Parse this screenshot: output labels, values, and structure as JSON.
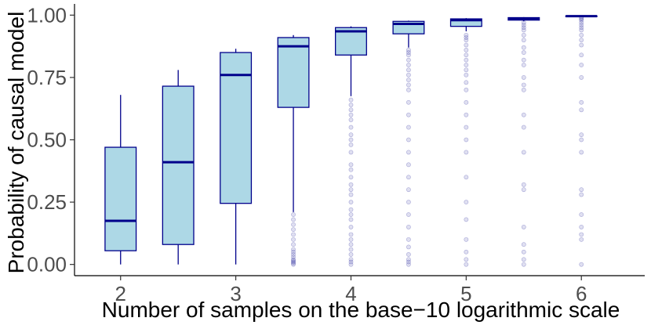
{
  "chart_data": {
    "type": "boxplot",
    "title": "",
    "xlabel": "Number of samples on the base−10 logarithmic scale",
    "ylabel": "Probability of causal model",
    "xlim": [
      1.6,
      6.55
    ],
    "ylim": [
      -0.045,
      1.045
    ],
    "x_ticks": [
      2,
      3,
      4,
      5,
      6
    ],
    "x_tick_labels": [
      "2",
      "3",
      "4",
      "5",
      "6"
    ],
    "y_ticks": [
      0.0,
      0.25,
      0.5,
      0.75,
      1.0
    ],
    "y_tick_labels": [
      "0.00",
      "0.25",
      "0.50",
      "0.75",
      "1.00"
    ],
    "box_width": 0.27,
    "colors": {
      "box_fill": "#add8e6",
      "box_stroke": "#00008b",
      "median": "#00008b",
      "outlier": "#00008b"
    },
    "boxes": [
      {
        "x": 2.0,
        "lower_whisker": 0.0,
        "q1": 0.055,
        "median": 0.175,
        "q3": 0.47,
        "upper_whisker": 0.68,
        "outliers": []
      },
      {
        "x": 2.5,
        "lower_whisker": 0.0,
        "q1": 0.08,
        "median": 0.41,
        "q3": 0.715,
        "upper_whisker": 0.78,
        "outliers": []
      },
      {
        "x": 3.0,
        "lower_whisker": 0.0,
        "q1": 0.245,
        "median": 0.76,
        "q3": 0.85,
        "upper_whisker": 0.865,
        "outliers": []
      },
      {
        "x": 3.5,
        "lower_whisker": 0.21,
        "q1": 0.63,
        "median": 0.875,
        "q3": 0.91,
        "upper_whisker": 0.92,
        "outliers": [
          0.0,
          0.005,
          0.01,
          0.015,
          0.02,
          0.03,
          0.04,
          0.05,
          0.06,
          0.08,
          0.1,
          0.12,
          0.14,
          0.16,
          0.18,
          0.2
        ]
      },
      {
        "x": 4.0,
        "lower_whisker": 0.675,
        "q1": 0.84,
        "median": 0.935,
        "q3": 0.95,
        "upper_whisker": 0.955,
        "outliers": [
          0.0,
          0.01,
          0.02,
          0.04,
          0.06,
          0.08,
          0.1,
          0.12,
          0.15,
          0.18,
          0.2,
          0.22,
          0.25,
          0.28,
          0.3,
          0.32,
          0.35,
          0.38,
          0.4,
          0.45,
          0.48,
          0.5,
          0.52,
          0.55,
          0.58,
          0.6,
          0.62,
          0.64,
          0.66
        ]
      },
      {
        "x": 4.5,
        "lower_whisker": 0.87,
        "q1": 0.925,
        "median": 0.965,
        "q3": 0.975,
        "upper_whisker": 0.978,
        "outliers": [
          0.0,
          0.01,
          0.02,
          0.04,
          0.07,
          0.1,
          0.15,
          0.2,
          0.25,
          0.3,
          0.35,
          0.4,
          0.45,
          0.5,
          0.55,
          0.6,
          0.65,
          0.7,
          0.72,
          0.74,
          0.76,
          0.78,
          0.8,
          0.82,
          0.84,
          0.85,
          0.86
        ]
      },
      {
        "x": 5.0,
        "lower_whisker": 0.935,
        "q1": 0.955,
        "median": 0.98,
        "q3": 0.985,
        "upper_whisker": 0.988,
        "outliers": [
          0.0,
          0.02,
          0.05,
          0.1,
          0.18,
          0.25,
          0.35,
          0.45,
          0.5,
          0.55,
          0.6,
          0.65,
          0.7,
          0.73,
          0.76,
          0.78,
          0.8,
          0.82,
          0.84,
          0.86,
          0.88,
          0.9,
          0.91,
          0.92
        ]
      },
      {
        "x": 5.5,
        "lower_whisker": 0.975,
        "q1": 0.98,
        "median": 0.987,
        "q3": 0.99,
        "upper_whisker": 0.992,
        "outliers": [
          0.0,
          0.02,
          0.05,
          0.08,
          0.15,
          0.3,
          0.32,
          0.45,
          0.55,
          0.6,
          0.7,
          0.72,
          0.75,
          0.8,
          0.82,
          0.85,
          0.87,
          0.9,
          0.92,
          0.94,
          0.95,
          0.96,
          0.97
        ]
      },
      {
        "x": 6.0,
        "lower_whisker": 0.994,
        "q1": 0.994,
        "median": 0.996,
        "q3": 0.997,
        "upper_whisker": 0.998,
        "outliers": [
          0.0,
          0.1,
          0.12,
          0.15,
          0.2,
          0.28,
          0.3,
          0.45,
          0.5,
          0.52,
          0.62,
          0.65,
          0.75,
          0.8,
          0.84,
          0.88,
          0.9,
          0.92,
          0.94,
          0.95,
          0.96,
          0.97,
          0.98,
          0.985,
          0.99
        ]
      }
    ]
  }
}
